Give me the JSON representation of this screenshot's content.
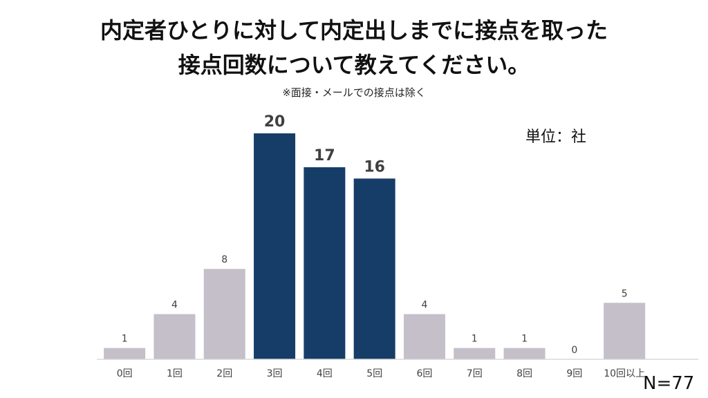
{
  "title_line1": "内定者ひとりに対して内定出しまでに接点を取った",
  "title_line2": "接点回数について教えてください。",
  "subtitle": "※面接・メールでの接点は除く",
  "unit_label": "単位：社",
  "sample_size": "N=77",
  "colors": {
    "highlight": "#163d68",
    "normal": "#c4bfc9",
    "axis": "#d9d9d9",
    "label": "#404040"
  },
  "chart_data": {
    "type": "bar",
    "categories": [
      "0回",
      "1回",
      "2回",
      "3回",
      "4回",
      "5回",
      "6回",
      "7回",
      "8回",
      "9回",
      "10回以上"
    ],
    "values": [
      1,
      4,
      8,
      20,
      17,
      16,
      4,
      1,
      1,
      0,
      5
    ],
    "highlighted": [
      false,
      false,
      false,
      true,
      true,
      true,
      false,
      false,
      false,
      false,
      false
    ],
    "ylim": [
      0,
      20
    ],
    "grid": false,
    "legend": "none",
    "xlabel": "",
    "ylabel": ""
  }
}
